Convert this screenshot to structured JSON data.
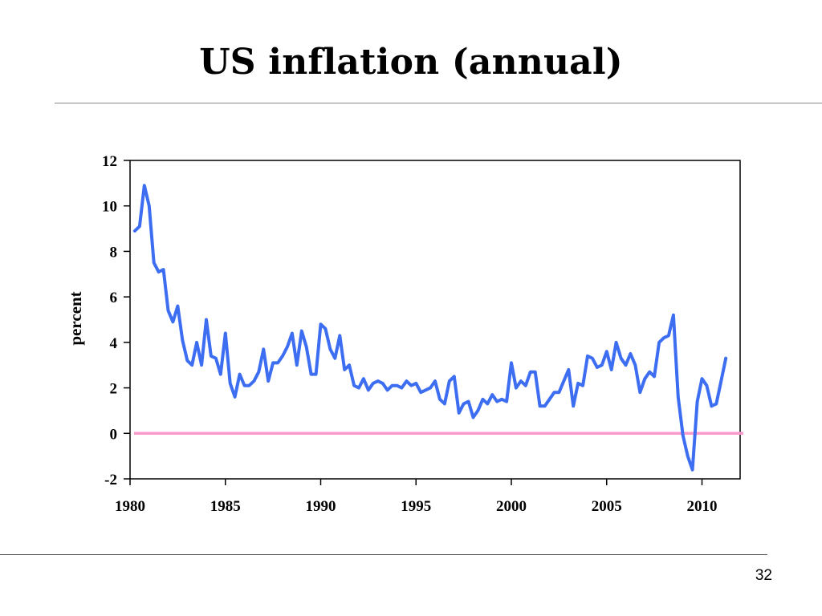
{
  "slide": {
    "title": "US inflation (annual)",
    "page_number": "32"
  },
  "chart_data": {
    "type": "line",
    "title": "US inflation (annual)",
    "xlabel": "",
    "ylabel": "percent",
    "xlim": [
      1980,
      2012
    ],
    "ylim": [
      -2,
      12
    ],
    "x_ticks": [
      1980,
      1985,
      1990,
      1995,
      2000,
      2005,
      2010
    ],
    "y_ticks": [
      -2,
      0,
      2,
      4,
      6,
      8,
      10,
      12
    ],
    "grid": false,
    "legend": "none",
    "reference_line": {
      "y": 0,
      "color": "#ff99cc"
    },
    "series": [
      {
        "color": "#3d6ef2",
        "x": [
          1980.25,
          1980.5,
          1980.75,
          1981.0,
          1981.25,
          1981.5,
          1981.75,
          1982.0,
          1982.25,
          1982.5,
          1982.75,
          1983.0,
          1983.25,
          1983.5,
          1983.75,
          1984.0,
          1984.25,
          1984.5,
          1984.75,
          1985.0,
          1985.25,
          1985.5,
          1985.75,
          1986.0,
          1986.25,
          1986.5,
          1986.75,
          1987.0,
          1987.25,
          1987.5,
          1987.75,
          1988.0,
          1988.25,
          1988.5,
          1988.75,
          1989.0,
          1989.25,
          1989.5,
          1989.75,
          1990.0,
          1990.25,
          1990.5,
          1990.75,
          1991.0,
          1991.25,
          1991.5,
          1991.75,
          1992.0,
          1992.25,
          1992.5,
          1992.75,
          1993.0,
          1993.25,
          1993.5,
          1993.75,
          1994.0,
          1994.25,
          1994.5,
          1994.75,
          1995.0,
          1995.25,
          1995.5,
          1995.75,
          1996.0,
          1996.25,
          1996.5,
          1996.75,
          1997.0,
          1997.25,
          1997.5,
          1997.75,
          1998.0,
          1998.25,
          1998.5,
          1998.75,
          1999.0,
          1999.25,
          1999.5,
          1999.75,
          2000.0,
          2000.25,
          2000.5,
          2000.75,
          2001.0,
          2001.25,
          2001.5,
          2001.75,
          2002.0,
          2002.25,
          2002.5,
          2002.75,
          2003.0,
          2003.25,
          2003.5,
          2003.75,
          2004.0,
          2004.25,
          2004.5,
          2004.75,
          2005.0,
          2005.25,
          2005.5,
          2005.75,
          2006.0,
          2006.25,
          2006.5,
          2006.75,
          2007.0,
          2007.25,
          2007.5,
          2007.75,
          2008.0,
          2008.25,
          2008.5,
          2008.75,
          2009.0,
          2009.25,
          2009.5,
          2009.75,
          2010.0,
          2010.25,
          2010.5,
          2010.75,
          2011.0,
          2011.25
        ],
        "values": [
          8.9,
          9.1,
          10.9,
          10.0,
          7.5,
          7.1,
          7.2,
          5.4,
          4.9,
          5.6,
          4.1,
          3.2,
          3.0,
          4.0,
          3.0,
          5.0,
          3.4,
          3.3,
          2.6,
          4.4,
          2.2,
          1.6,
          2.6,
          2.1,
          2.1,
          2.3,
          2.7,
          3.7,
          2.3,
          3.1,
          3.1,
          3.4,
          3.8,
          4.4,
          3.0,
          4.5,
          3.8,
          2.6,
          2.6,
          4.8,
          4.6,
          3.7,
          3.3,
          4.3,
          2.8,
          3.0,
          2.1,
          2.0,
          2.4,
          1.9,
          2.2,
          2.3,
          2.2,
          1.9,
          2.1,
          2.1,
          2.0,
          2.3,
          2.1,
          2.2,
          1.8,
          1.9,
          2.0,
          2.3,
          1.5,
          1.3,
          2.3,
          2.5,
          0.9,
          1.3,
          1.4,
          0.7,
          1.0,
          1.5,
          1.3,
          1.7,
          1.4,
          1.5,
          1.4,
          3.1,
          2.0,
          2.3,
          2.1,
          2.7,
          2.7,
          1.2,
          1.2,
          1.5,
          1.8,
          1.8,
          2.3,
          2.8,
          1.2,
          2.2,
          2.1,
          3.4,
          3.3,
          2.9,
          3.0,
          3.6,
          2.8,
          4.0,
          3.3,
          3.0,
          3.5,
          3.0,
          1.8,
          2.4,
          2.7,
          2.5,
          4.0,
          4.2,
          4.3,
          5.2,
          1.6,
          -0.1,
          -1.0,
          -1.6,
          1.4,
          2.4,
          2.1,
          1.2,
          1.3,
          2.3,
          3.3
        ]
      }
    ]
  }
}
